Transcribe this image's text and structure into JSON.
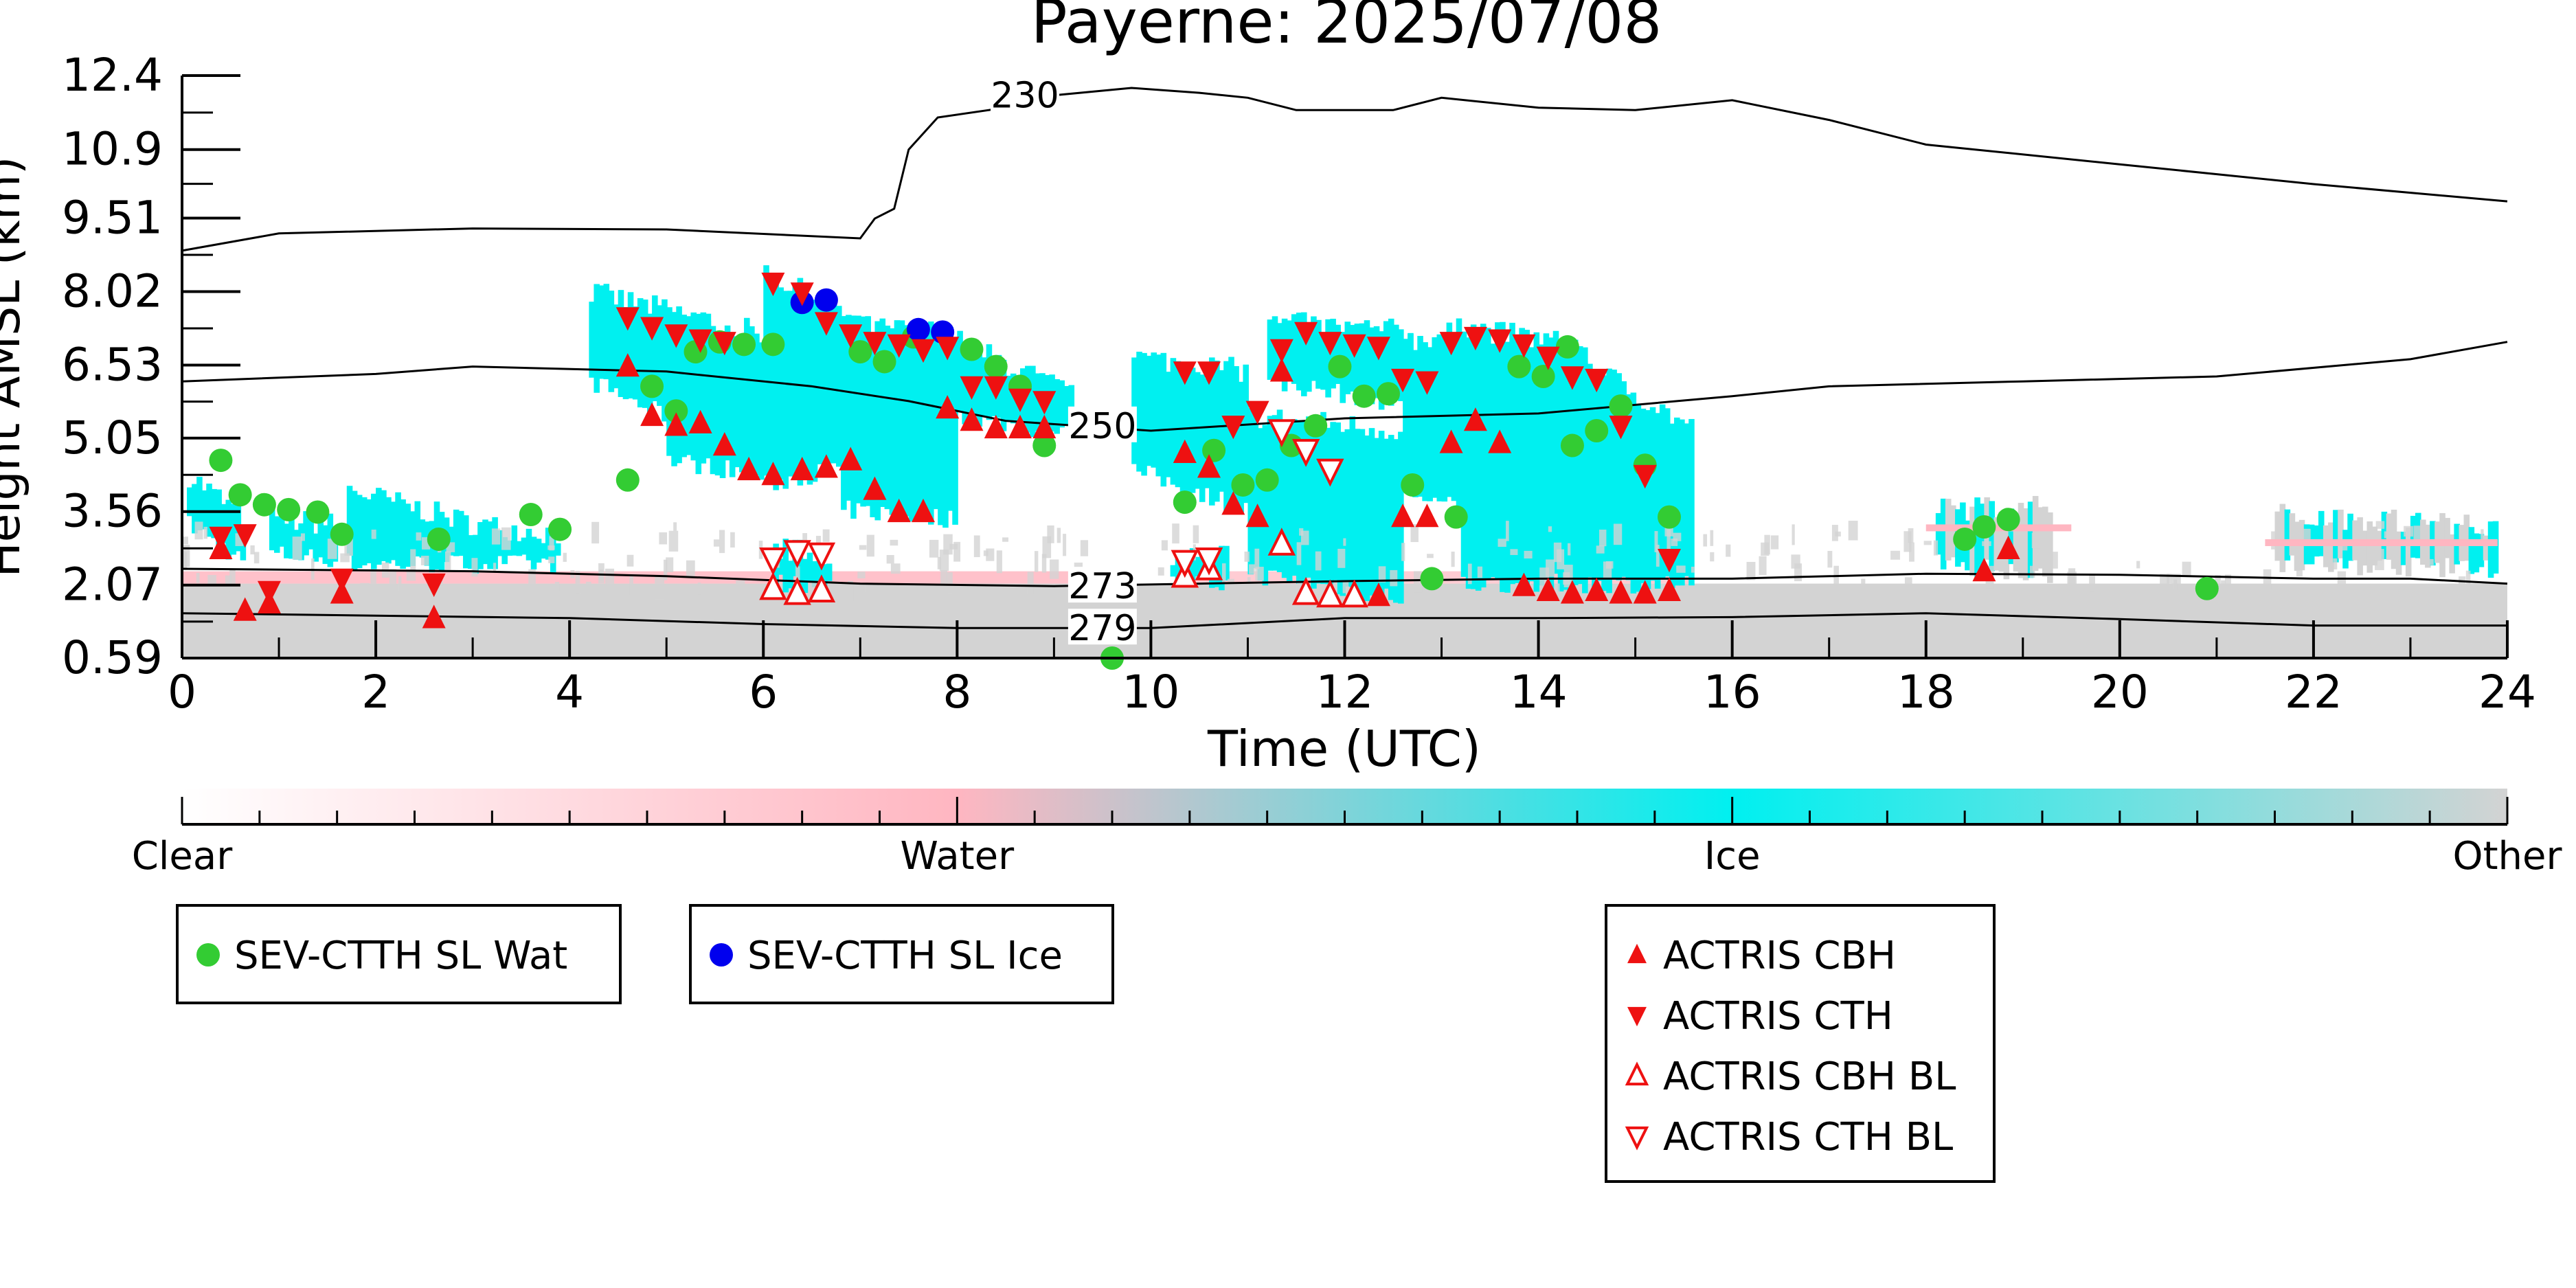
{
  "chart_data": {
    "type": "scatter",
    "title": "Payerne: 2025/07/08",
    "xlabel": "Time (UTC)",
    "ylabel": "Height AMSL (km)",
    "xlim": [
      0,
      24
    ],
    "ylim": [
      0.59,
      12.4
    ],
    "xticks": [
      0,
      2,
      4,
      6,
      8,
      10,
      12,
      14,
      16,
      18,
      20,
      22,
      24
    ],
    "yticks": [
      0.59,
      2.07,
      3.56,
      5.05,
      6.53,
      8.02,
      9.51,
      10.9,
      12.4
    ],
    "ytick_labels": [
      "0.59",
      "2.07",
      "3.56",
      "5.05",
      "6.53",
      "8.02",
      "9.51",
      "10.9",
      "12.4"
    ],
    "grid": false,
    "colors": {
      "wat": "#33cc33",
      "ice": "#0000ee",
      "actris": "#ee1111",
      "clear": "#ffffff",
      "water": "#ffb6c1",
      "ice_class": "#00f0f0",
      "other": "#d3d3d3",
      "contour": "#000000"
    },
    "colorbar": {
      "labels": [
        "Clear",
        "Water",
        "Ice",
        "Other"
      ],
      "stops": [
        "#ffffff",
        "#ffb6c1",
        "#00f0f0",
        "#d3d3d3"
      ]
    },
    "contours": [
      {
        "label": "230",
        "label_at": [
          8.7,
          12.0
        ],
        "points": [
          [
            0,
            8.85
          ],
          [
            1,
            9.2
          ],
          [
            3,
            9.3
          ],
          [
            5,
            9.28
          ],
          [
            7,
            9.1
          ],
          [
            7.15,
            9.5
          ],
          [
            7.35,
            9.7
          ],
          [
            7.5,
            10.9
          ],
          [
            7.8,
            11.55
          ],
          [
            8.5,
            11.75
          ],
          [
            9.0,
            12.0
          ],
          [
            9.8,
            12.15
          ],
          [
            10.5,
            12.05
          ],
          [
            11.0,
            11.95
          ],
          [
            11.5,
            11.7
          ],
          [
            12.5,
            11.7
          ],
          [
            13.0,
            11.95
          ],
          [
            14.0,
            11.75
          ],
          [
            15.0,
            11.7
          ],
          [
            16.0,
            11.9
          ],
          [
            17.0,
            11.5
          ],
          [
            18.0,
            11.0
          ],
          [
            20.0,
            10.6
          ],
          [
            22.0,
            10.2
          ],
          [
            24.0,
            9.85
          ]
        ]
      },
      {
        "label": "250",
        "label_at": [
          9.5,
          5.3
        ],
        "points": [
          [
            0,
            6.2
          ],
          [
            2,
            6.35
          ],
          [
            3,
            6.5
          ],
          [
            5,
            6.4
          ],
          [
            6.5,
            6.1
          ],
          [
            7.5,
            5.8
          ],
          [
            8.5,
            5.4
          ],
          [
            10.0,
            5.2
          ],
          [
            12.0,
            5.45
          ],
          [
            14.0,
            5.55
          ],
          [
            16.0,
            5.9
          ],
          [
            17.0,
            6.1
          ],
          [
            19.0,
            6.2
          ],
          [
            21.0,
            6.3
          ],
          [
            23.0,
            6.65
          ],
          [
            24.0,
            7.0
          ]
        ]
      },
      {
        "label": "273",
        "label_at": [
          9.5,
          2.05
        ],
        "points": [
          [
            0,
            2.4
          ],
          [
            3,
            2.35
          ],
          [
            5,
            2.25
          ],
          [
            7,
            2.1
          ],
          [
            9,
            2.05
          ],
          [
            10.5,
            2.1
          ],
          [
            12,
            2.15
          ],
          [
            14,
            2.2
          ],
          [
            16,
            2.2
          ],
          [
            18,
            2.3
          ],
          [
            20,
            2.28
          ],
          [
            22,
            2.2
          ],
          [
            23,
            2.2
          ],
          [
            24,
            2.1
          ]
        ]
      },
      {
        "label": "279",
        "label_at": [
          9.5,
          1.2
        ],
        "points": [
          [
            0,
            1.5
          ],
          [
            2,
            1.45
          ],
          [
            4,
            1.4
          ],
          [
            6,
            1.28
          ],
          [
            8,
            1.2
          ],
          [
            10,
            1.2
          ],
          [
            12,
            1.4
          ],
          [
            14,
            1.4
          ],
          [
            16,
            1.42
          ],
          [
            18,
            1.5
          ],
          [
            20,
            1.38
          ],
          [
            22,
            1.25
          ],
          [
            24,
            1.25
          ]
        ]
      }
    ],
    "series": [
      {
        "name": "SEV-CTTH SL Wat",
        "marker": "circle",
        "points": [
          [
            0.4,
            4.6
          ],
          [
            0.6,
            3.9
          ],
          [
            0.85,
            3.7
          ],
          [
            1.1,
            3.6
          ],
          [
            1.4,
            3.55
          ],
          [
            1.65,
            3.1
          ],
          [
            2.65,
            3.0
          ],
          [
            3.6,
            3.5
          ],
          [
            3.9,
            3.2
          ],
          [
            4.6,
            4.2
          ],
          [
            4.85,
            6.1
          ],
          [
            5.1,
            5.6
          ],
          [
            5.3,
            6.8
          ],
          [
            5.55,
            7.0
          ],
          [
            5.8,
            6.95
          ],
          [
            6.1,
            6.95
          ],
          [
            7.0,
            6.8
          ],
          [
            7.25,
            6.6
          ],
          [
            7.55,
            7.1
          ],
          [
            8.15,
            6.85
          ],
          [
            8.4,
            6.5
          ],
          [
            8.65,
            6.1
          ],
          [
            8.9,
            4.9
          ],
          [
            9.6,
            0.59
          ],
          [
            10.35,
            3.75
          ],
          [
            10.65,
            4.8
          ],
          [
            10.95,
            4.1
          ],
          [
            11.2,
            4.2
          ],
          [
            11.45,
            4.9
          ],
          [
            11.7,
            5.3
          ],
          [
            11.95,
            6.5
          ],
          [
            12.2,
            5.9
          ],
          [
            12.45,
            5.95
          ],
          [
            12.7,
            4.1
          ],
          [
            12.9,
            2.2
          ],
          [
            13.15,
            3.45
          ],
          [
            13.8,
            6.5
          ],
          [
            14.05,
            6.3
          ],
          [
            14.3,
            6.9
          ],
          [
            14.35,
            4.9
          ],
          [
            14.6,
            5.2
          ],
          [
            14.85,
            5.7
          ],
          [
            15.1,
            4.5
          ],
          [
            15.35,
            3.45
          ],
          [
            18.4,
            3.0
          ],
          [
            18.6,
            3.25
          ],
          [
            18.85,
            3.4
          ],
          [
            20.9,
            2.0
          ]
        ]
      },
      {
        "name": "SEV-CTTH SL Ice",
        "marker": "circle",
        "points": [
          [
            6.4,
            7.8
          ],
          [
            6.65,
            7.85
          ],
          [
            7.6,
            7.25
          ],
          [
            7.85,
            7.2
          ]
        ]
      },
      {
        "name": "ACTRIS CBH",
        "marker": "triangle-up",
        "points": [
          [
            0.4,
            2.8
          ],
          [
            0.65,
            1.55
          ],
          [
            0.9,
            1.7
          ],
          [
            1.65,
            1.9
          ],
          [
            2.6,
            1.4
          ],
          [
            4.6,
            6.5
          ],
          [
            4.85,
            5.5
          ],
          [
            5.1,
            5.3
          ],
          [
            5.35,
            5.35
          ],
          [
            5.6,
            4.9
          ],
          [
            5.85,
            4.4
          ],
          [
            6.1,
            4.3
          ],
          [
            6.4,
            4.4
          ],
          [
            6.65,
            4.45
          ],
          [
            6.9,
            4.6
          ],
          [
            7.15,
            4.0
          ],
          [
            7.4,
            3.55
          ],
          [
            7.65,
            3.55
          ],
          [
            7.9,
            5.65
          ],
          [
            8.15,
            5.4
          ],
          [
            8.4,
            5.25
          ],
          [
            8.65,
            5.25
          ],
          [
            8.9,
            5.25
          ],
          [
            10.35,
            4.75
          ],
          [
            10.6,
            4.45
          ],
          [
            10.85,
            3.7
          ],
          [
            11.1,
            3.45
          ],
          [
            11.35,
            6.4
          ],
          [
            11.6,
            1.9
          ],
          [
            11.85,
            1.9
          ],
          [
            12.1,
            1.9
          ],
          [
            12.35,
            1.85
          ],
          [
            12.6,
            3.45
          ],
          [
            12.85,
            3.45
          ],
          [
            13.1,
            4.95
          ],
          [
            13.35,
            5.4
          ],
          [
            13.6,
            4.95
          ],
          [
            13.85,
            2.05
          ],
          [
            14.1,
            1.95
          ],
          [
            14.35,
            1.9
          ],
          [
            14.6,
            1.95
          ],
          [
            14.85,
            1.9
          ],
          [
            15.1,
            1.9
          ],
          [
            15.35,
            1.95
          ],
          [
            18.6,
            2.35
          ],
          [
            18.85,
            2.8
          ]
        ]
      },
      {
        "name": "ACTRIS CTH",
        "marker": "triangle-down",
        "points": [
          [
            0.4,
            3.05
          ],
          [
            0.65,
            3.1
          ],
          [
            0.9,
            1.95
          ],
          [
            1.65,
            2.2
          ],
          [
            2.6,
            2.1
          ],
          [
            4.6,
            7.5
          ],
          [
            4.85,
            7.3
          ],
          [
            5.1,
            7.15
          ],
          [
            5.35,
            7.05
          ],
          [
            5.6,
            7.0
          ],
          [
            6.1,
            8.2
          ],
          [
            6.4,
            8.0
          ],
          [
            6.65,
            7.4
          ],
          [
            6.9,
            7.15
          ],
          [
            7.15,
            7.0
          ],
          [
            7.4,
            6.95
          ],
          [
            7.65,
            6.85
          ],
          [
            7.9,
            6.9
          ],
          [
            8.15,
            6.1
          ],
          [
            8.4,
            6.1
          ],
          [
            8.65,
            5.85
          ],
          [
            8.9,
            5.8
          ],
          [
            10.35,
            6.4
          ],
          [
            10.6,
            6.4
          ],
          [
            10.85,
            5.3
          ],
          [
            11.1,
            5.6
          ],
          [
            11.35,
            6.85
          ],
          [
            11.6,
            7.2
          ],
          [
            11.85,
            7.0
          ],
          [
            12.1,
            6.95
          ],
          [
            12.35,
            6.9
          ],
          [
            12.6,
            6.25
          ],
          [
            12.85,
            6.2
          ],
          [
            13.1,
            7.0
          ],
          [
            13.35,
            7.1
          ],
          [
            13.6,
            7.05
          ],
          [
            13.85,
            6.95
          ],
          [
            14.1,
            6.7
          ],
          [
            14.35,
            6.3
          ],
          [
            14.6,
            6.25
          ],
          [
            14.85,
            5.3
          ],
          [
            15.1,
            4.3
          ],
          [
            15.35,
            2.6
          ]
        ]
      },
      {
        "name": "ACTRIS CBH BL",
        "marker": "triangle-up-open",
        "points": [
          [
            6.1,
            2.0
          ],
          [
            6.35,
            1.9
          ],
          [
            6.6,
            1.95
          ],
          [
            10.35,
            2.25
          ],
          [
            10.6,
            2.4
          ],
          [
            11.35,
            2.9
          ],
          [
            11.6,
            1.9
          ],
          [
            11.85,
            1.85
          ],
          [
            12.1,
            1.85
          ]
        ]
      },
      {
        "name": "ACTRIS CTH BL",
        "marker": "triangle-down-open",
        "points": [
          [
            6.1,
            2.6
          ],
          [
            6.35,
            2.75
          ],
          [
            6.6,
            2.7
          ],
          [
            10.35,
            2.55
          ],
          [
            10.6,
            2.6
          ],
          [
            11.35,
            5.2
          ],
          [
            11.6,
            4.8
          ],
          [
            11.85,
            4.4
          ]
        ]
      }
    ]
  }
}
